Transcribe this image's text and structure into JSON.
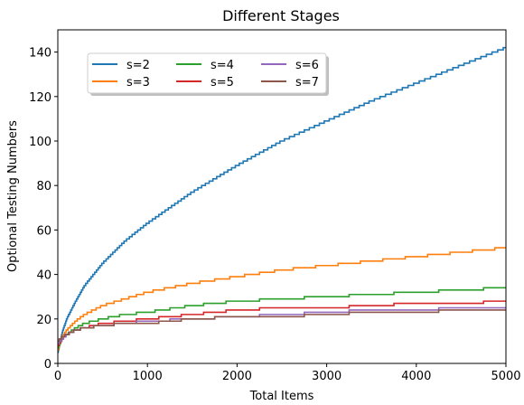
{
  "chart_data": {
    "type": "line",
    "title": "Different Stages",
    "xlabel": "Total Items",
    "ylabel": "Optional Testing Numbers",
    "xlim": [
      0,
      5000
    ],
    "ylim": [
      0,
      150
    ],
    "xticks": [
      0,
      1000,
      2000,
      3000,
      4000,
      5000
    ],
    "xtick_labels": [
      "0",
      "1000",
      "2000",
      "3000",
      "4000",
      "5000"
    ],
    "yticks": [
      0,
      20,
      40,
      60,
      80,
      100,
      120,
      140
    ],
    "ytick_labels": [
      "0",
      "20",
      "40",
      "60",
      "80",
      "100",
      "120",
      "140"
    ],
    "grid": false,
    "step": true,
    "legend": {
      "placement": "upper-left",
      "columns": 3,
      "shadow": true
    },
    "series": [
      {
        "name": "s=2",
        "color": "#1f77b4",
        "x": [
          1,
          50,
          100,
          200,
          300,
          500,
          750,
          1000,
          1500,
          2000,
          2500,
          3000,
          3500,
          4000,
          4500,
          5000
        ],
        "y": [
          5,
          14,
          20,
          28,
          35,
          45,
          55,
          63,
          77,
          89,
          100,
          109,
          118,
          126,
          134,
          142
        ]
      },
      {
        "name": "s=3",
        "color": "#ff7f0e",
        "x": [
          1,
          50,
          100,
          200,
          300,
          500,
          750,
          1000,
          1500,
          2000,
          2500,
          3000,
          3500,
          4000,
          4500,
          5000
        ],
        "y": [
          6,
          12,
          15,
          19,
          22,
          26,
          29,
          32,
          36,
          39,
          42,
          44,
          46,
          48,
          50,
          52
        ]
      },
      {
        "name": "s=4",
        "color": "#2ca02c",
        "x": [
          1,
          50,
          100,
          200,
          300,
          500,
          750,
          1000,
          1500,
          2000,
          2500,
          3000,
          3500,
          4000,
          4500,
          5000
        ],
        "y": [
          7,
          11,
          13,
          16,
          18,
          20,
          22,
          23,
          26,
          28,
          29,
          30,
          31,
          32,
          33,
          34
        ]
      },
      {
        "name": "s=5",
        "color": "#d62728",
        "x": [
          1,
          50,
          100,
          200,
          300,
          500,
          750,
          1000,
          1500,
          2000,
          2500,
          3000,
          3500,
          4000,
          4500,
          5000
        ],
        "y": [
          8,
          11,
          13,
          15,
          16,
          18,
          19,
          20,
          22,
          24,
          25,
          25,
          26,
          27,
          27,
          28
        ]
      },
      {
        "name": "s=6",
        "color": "#9467bd",
        "x": [
          1,
          50,
          100,
          200,
          300,
          500,
          750,
          1000,
          1500,
          2000,
          2500,
          3000,
          3500,
          4000,
          4500,
          5000
        ],
        "y": [
          9,
          11,
          13,
          15,
          16,
          17,
          18,
          19,
          20,
          21,
          22,
          23,
          24,
          24,
          25,
          25
        ]
      },
      {
        "name": "s=7",
        "color": "#8c564b",
        "x": [
          1,
          50,
          100,
          200,
          300,
          500,
          750,
          1000,
          1500,
          2000,
          2500,
          3000,
          3500,
          4000,
          4500,
          5000
        ],
        "y": [
          10,
          12,
          13,
          15,
          16,
          17,
          18,
          18,
          20,
          21,
          21,
          22,
          23,
          23,
          24,
          24
        ]
      }
    ]
  }
}
